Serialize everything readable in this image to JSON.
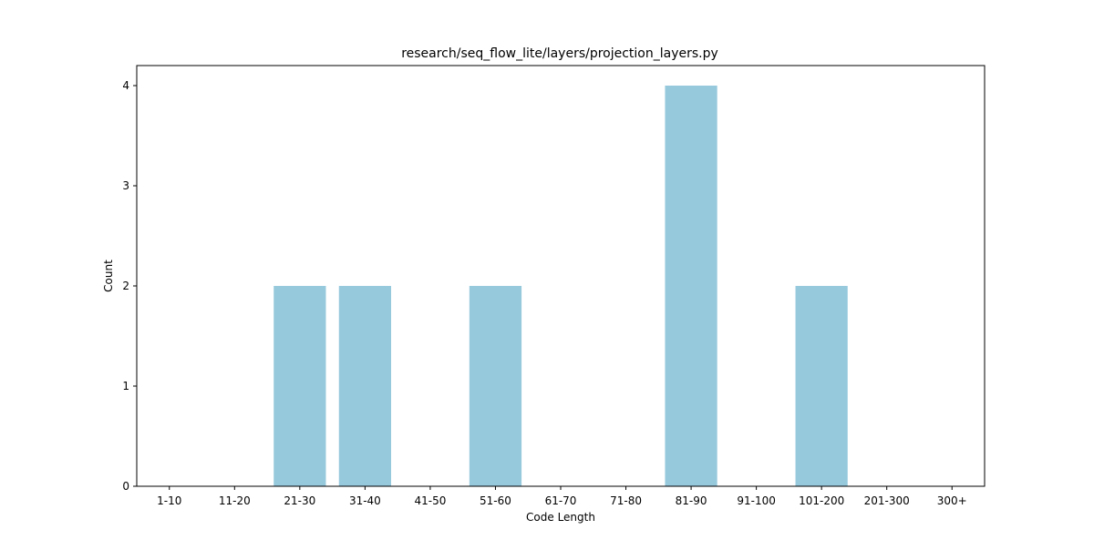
{
  "chart_data": {
    "type": "bar",
    "title": "research/seq_flow_lite/layers/projection_layers.py",
    "xlabel": "Code Length",
    "ylabel": "Count",
    "categories": [
      "1-10",
      "11-20",
      "21-30",
      "31-40",
      "41-50",
      "51-60",
      "61-70",
      "71-80",
      "81-90",
      "91-100",
      "101-200",
      "201-300",
      "300+"
    ],
    "values": [
      0,
      0,
      2,
      2,
      0,
      2,
      0,
      0,
      4,
      0,
      2,
      0,
      0
    ],
    "ylim": [
      0,
      4.2
    ],
    "yticks": [
      0,
      1,
      2,
      3,
      4
    ],
    "bar_color": "#96c9dc",
    "grid": false,
    "legend": "none"
  }
}
